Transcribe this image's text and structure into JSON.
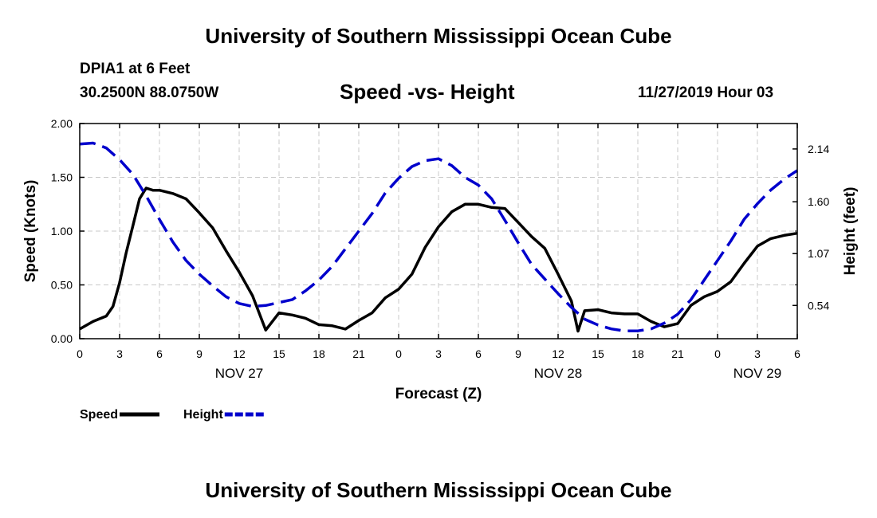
{
  "header": {
    "title": "University of Southern Mississippi Ocean Cube",
    "station": "DPIA1 at 6 Feet",
    "coords": "30.2500N 88.0750W",
    "timestamp": "11/27/2019 Hour 03"
  },
  "footer": {
    "title": "University of Southern Mississippi Ocean Cube"
  },
  "chart_data": {
    "type": "line",
    "title": "Speed -vs- Height",
    "xlabel": "Forecast (Z)",
    "ylabel": "Speed (Knots)",
    "y2label": "Height (feet)",
    "x_range_hours": [
      0,
      54
    ],
    "ylim": [
      0,
      2.0
    ],
    "y2lim": [
      0.2,
      2.4
    ],
    "x_tick_values": [
      0,
      3,
      6,
      9,
      12,
      15,
      18,
      21,
      24,
      27,
      30,
      33,
      36,
      39,
      42,
      45,
      48,
      51,
      54
    ],
    "x_tick_labels": [
      "0",
      "3",
      "6",
      "9",
      "12",
      "15",
      "18",
      "21",
      "0",
      "3",
      "6",
      "9",
      "12",
      "15",
      "18",
      "21",
      "0",
      "3",
      "6"
    ],
    "y_ticks": [
      0.0,
      0.5,
      1.0,
      1.5,
      2.0
    ],
    "y_tick_labels": [
      "0.00",
      "0.50",
      "1.00",
      "1.50",
      "2.00"
    ],
    "y2_ticks": [
      0.54,
      1.07,
      1.6,
      2.14
    ],
    "y2_tick_labels": [
      "0.54",
      "1.07",
      "1.60",
      "2.14"
    ],
    "day_labels": [
      {
        "hour": 12,
        "label": "NOV 27"
      },
      {
        "hour": 36,
        "label": "NOV 28"
      },
      {
        "hour": 51,
        "label": "NOV 29"
      }
    ],
    "grid": true,
    "series": [
      {
        "name": "Speed",
        "axis": "left",
        "color": "#000000",
        "style": "solid",
        "x": [
          0,
          1,
          2,
          2.5,
          3,
          3.5,
          4,
          4.5,
          5,
          5.5,
          6,
          7,
          8,
          9,
          10,
          11,
          12,
          13,
          14,
          15,
          16,
          17,
          18,
          19,
          20,
          21,
          22,
          23,
          24,
          25,
          26,
          27,
          28,
          29,
          30,
          31,
          32,
          33,
          34,
          35,
          36,
          37,
          37.5,
          38,
          39,
          40,
          41,
          42,
          43,
          44,
          45,
          46,
          47,
          48,
          49,
          50,
          51,
          52,
          53,
          54
        ],
        "values": [
          0.09,
          0.16,
          0.21,
          0.3,
          0.52,
          0.8,
          1.05,
          1.3,
          1.4,
          1.38,
          1.38,
          1.35,
          1.3,
          1.17,
          1.03,
          0.82,
          0.62,
          0.4,
          0.08,
          0.24,
          0.22,
          0.19,
          0.13,
          0.12,
          0.09,
          0.17,
          0.24,
          0.38,
          0.46,
          0.6,
          0.85,
          1.04,
          1.18,
          1.25,
          1.25,
          1.22,
          1.21,
          1.08,
          0.95,
          0.84,
          0.6,
          0.35,
          0.07,
          0.26,
          0.27,
          0.24,
          0.23,
          0.23,
          0.16,
          0.11,
          0.14,
          0.31,
          0.39,
          0.44,
          0.53,
          0.7,
          0.86,
          0.93,
          0.96,
          0.98
        ]
      },
      {
        "name": "Height",
        "axis": "right",
        "color": "#0000cc",
        "style": "dashed",
        "x": [
          0,
          1,
          2,
          3,
          4,
          5,
          6,
          7,
          8,
          9,
          10,
          11,
          12,
          13,
          14,
          15,
          16,
          17,
          18,
          19,
          20,
          21,
          22,
          23,
          24,
          25,
          26,
          27,
          28,
          29,
          30,
          31,
          32,
          33,
          34,
          35,
          36,
          37,
          38,
          39,
          40,
          41,
          42,
          43,
          44,
          45,
          46,
          47,
          48,
          49,
          50,
          51,
          52,
          53,
          54
        ],
        "values": [
          2.19,
          2.2,
          2.15,
          2.03,
          1.88,
          1.66,
          1.42,
          1.19,
          1.0,
          0.86,
          0.74,
          0.63,
          0.56,
          0.53,
          0.54,
          0.57,
          0.6,
          0.69,
          0.8,
          0.94,
          1.12,
          1.3,
          1.48,
          1.69,
          1.84,
          1.96,
          2.02,
          2.04,
          1.97,
          1.85,
          1.77,
          1.63,
          1.41,
          1.18,
          0.96,
          0.81,
          0.66,
          0.52,
          0.4,
          0.34,
          0.3,
          0.28,
          0.28,
          0.3,
          0.36,
          0.45,
          0.6,
          0.8,
          1.0,
          1.2,
          1.42,
          1.58,
          1.72,
          1.83,
          1.92
        ]
      }
    ],
    "legend": [
      {
        "label": "Speed",
        "color": "#000000",
        "style": "solid"
      },
      {
        "label": "Height",
        "color": "#0000cc",
        "style": "dashed"
      }
    ],
    "legend_position": "bottom-left"
  }
}
